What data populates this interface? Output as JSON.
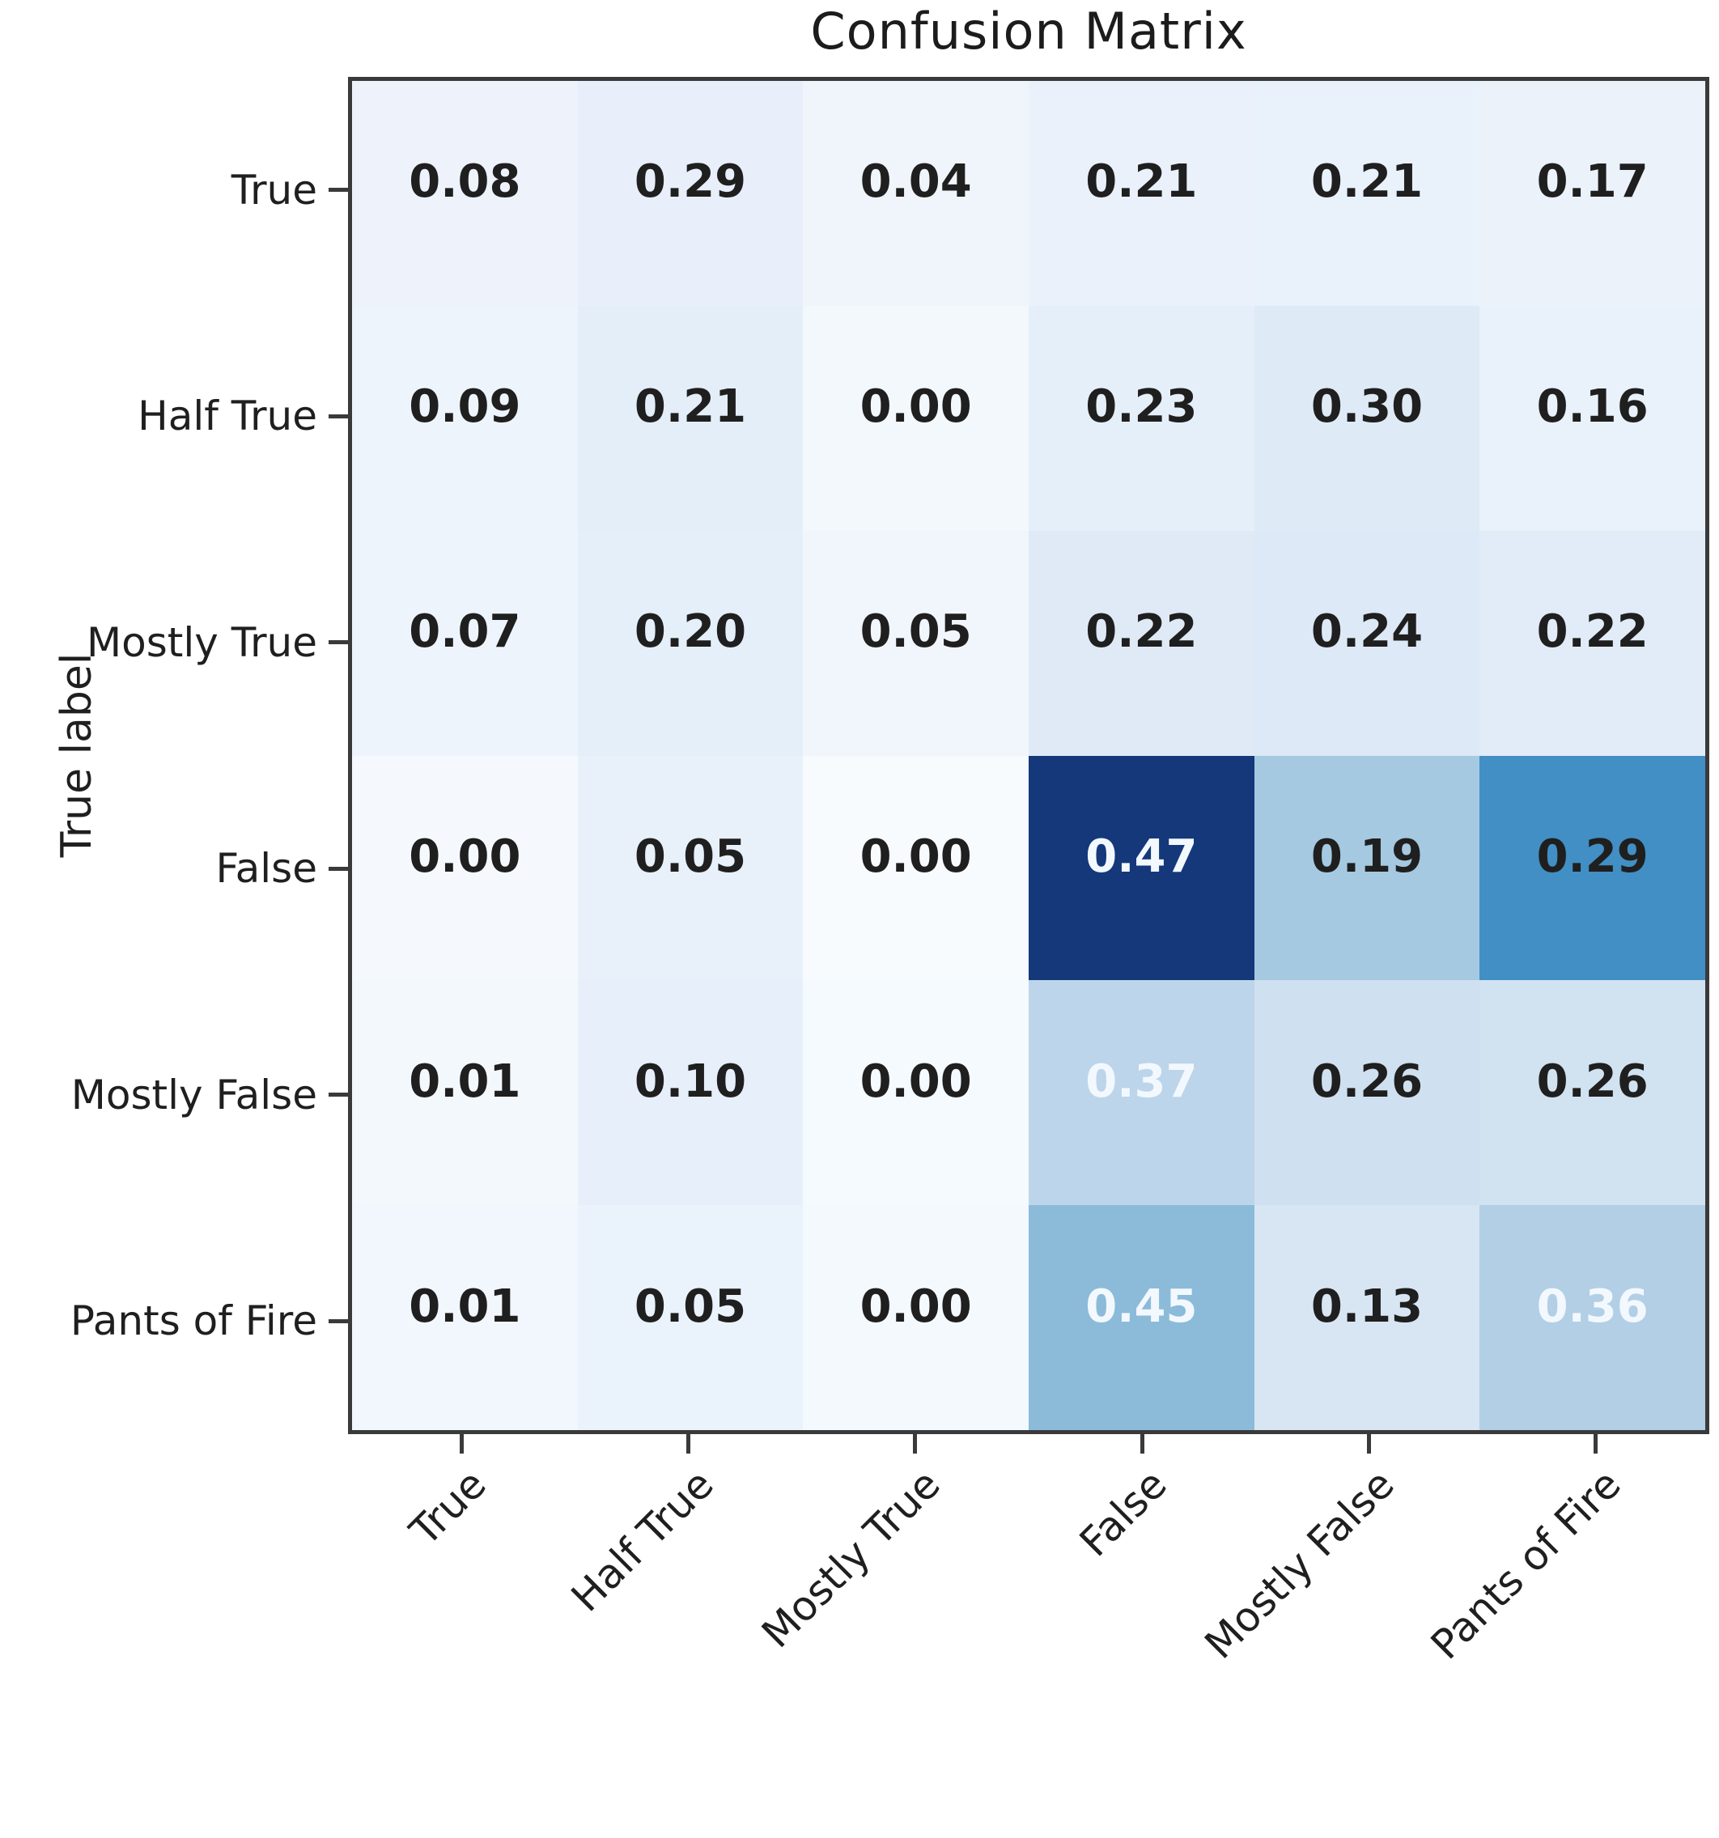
{
  "title": "Confusion Matrix",
  "chart_data": {
    "type": "heatmap",
    "title": "Confusion Matrix",
    "ylabel": "True label",
    "xlabel": "",
    "colormap": "Blues",
    "rows": [
      "True",
      "Half True",
      "Mostly True",
      "False",
      "Mostly False",
      "Pants of Fire"
    ],
    "columns": [
      "True",
      "Half True",
      "Mostly True",
      "False",
      "Mostly False",
      "Pants of Fire"
    ],
    "values": [
      [
        0.08,
        0.29,
        0.04,
        0.21,
        0.21,
        0.17
      ],
      [
        0.09,
        0.21,
        0.0,
        0.23,
        0.3,
        0.16
      ],
      [
        0.07,
        0.2,
        0.05,
        0.22,
        0.24,
        0.22
      ],
      [
        0.0,
        0.05,
        0.0,
        0.47,
        0.19,
        0.29
      ],
      [
        0.01,
        0.1,
        0.0,
        0.37,
        0.26,
        0.26
      ],
      [
        0.01,
        0.05,
        0.0,
        0.45,
        0.13,
        0.36
      ]
    ],
    "labels": [
      [
        "0.08",
        "0.29",
        "0.04",
        "0.21",
        "0.21",
        "0.17"
      ],
      [
        "0.09",
        "0.21",
        "0.00",
        "0.23",
        "0.30",
        "0.16"
      ],
      [
        "0.07",
        "0.20",
        "0.05",
        "0.22",
        "0.24",
        "0.22"
      ],
      [
        "0.00",
        "0.05",
        "0.00",
        "0.47",
        "0.19",
        "0.29"
      ],
      [
        "0.01",
        "0.10",
        "0.00",
        "0.37",
        "0.26",
        "0.26"
      ],
      [
        "0.01",
        "0.05",
        "0.00",
        "0.45",
        "0.13",
        "0.36"
      ]
    ],
    "cell_colors": [
      [
        "#eef3fb",
        "#e8effa",
        "#f0f5fc",
        "#eaf1fa",
        "#e9f1fa",
        "#ebf2fa"
      ],
      [
        "#eef4fc",
        "#e4eef9",
        "#f3f8fd",
        "#e5effa",
        "#deeaf6",
        "#e9f1fa"
      ],
      [
        "#eef4fb",
        "#e5eff9",
        "#f1f6fd",
        "#dfeaf6",
        "#dde9f6",
        "#e1ecf8"
      ],
      [
        "#f5f9fe",
        "#e8f0f9",
        "#f7fbfe",
        "#14387a",
        "#a5c9e1",
        "#418fc4"
      ],
      [
        "#f3f8fd",
        "#e7effa",
        "#f5fafe",
        "#bcd5ea",
        "#cfe0f0",
        "#d1e2f1"
      ],
      [
        "#f2f7fd",
        "#eaf2fb",
        "#f4f9fe",
        "#8cbbd9",
        "#d8e6f3",
        "#b2cfe6"
      ]
    ],
    "white_text_cells": [
      [
        3,
        3
      ],
      [
        4,
        3
      ],
      [
        5,
        3
      ],
      [
        5,
        5
      ]
    ],
    "accent_dark_blue": "#14387a",
    "axis_frame_color": "#3a3a3a",
    "grid": false,
    "legend": "none"
  }
}
